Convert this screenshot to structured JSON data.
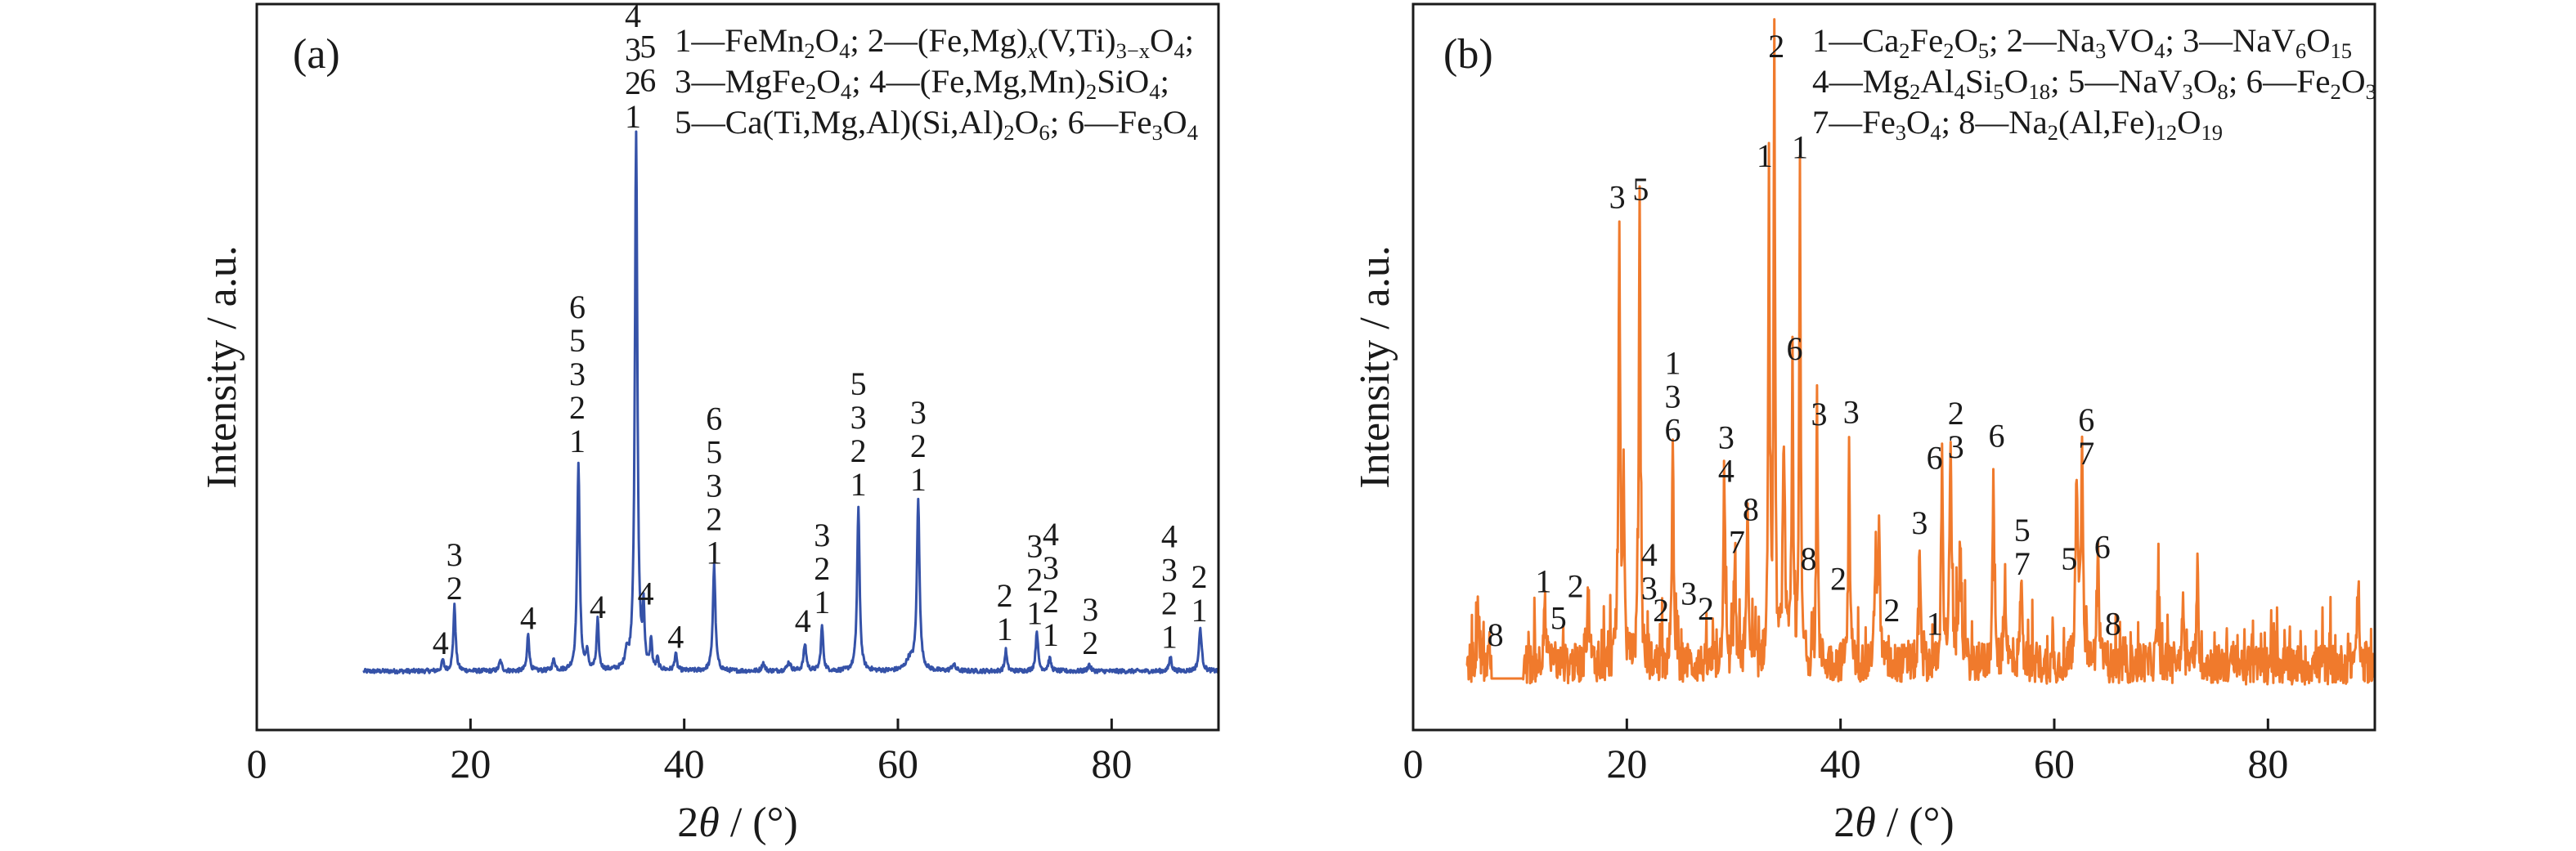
{
  "chart_data": [
    {
      "type": "line",
      "panel_label": "(a)",
      "xlabel_pre": "2",
      "xlabel_theta": "θ",
      "xlabel_post": " / (°)",
      "ylabel": "Intensity / a.u.",
      "xlim": [
        0,
        90
      ],
      "ylim": [
        0,
        100
      ],
      "xticks": [
        "0",
        "20",
        "40",
        "60",
        "80"
      ],
      "xtick_values": [
        0,
        20,
        40,
        60,
        80
      ],
      "color": "#3552a8",
      "x_start": 10,
      "x_end": 90,
      "baseline": 8.1,
      "noise": 0.6,
      "peaks": [
        [
          17.4,
          9.6,
          0.12
        ],
        [
          18.5,
          17.1,
          0.13
        ],
        [
          22.8,
          9.5,
          0.15
        ],
        [
          25.4,
          13.3,
          0.12
        ],
        [
          27.8,
          9.6,
          0.15
        ],
        [
          30.1,
          36.9,
          0.14
        ],
        [
          30.9,
          10.5,
          0.12
        ],
        [
          31.9,
          15.0,
          0.12
        ],
        [
          34.6,
          10.2,
          0.15
        ],
        [
          35.5,
          82.2,
          0.14
        ],
        [
          36.2,
          15.8,
          0.1
        ],
        [
          36.9,
          12.2,
          0.1
        ],
        [
          37.5,
          9.6,
          0.1
        ],
        [
          39.2,
          10.5,
          0.12
        ],
        [
          42.8,
          22.7,
          0.14
        ],
        [
          47.4,
          9.2,
          0.15
        ],
        [
          49.8,
          9.3,
          0.2
        ],
        [
          51.3,
          11.8,
          0.15
        ],
        [
          52.9,
          14.3,
          0.13
        ],
        [
          56.3,
          30.4,
          0.14
        ],
        [
          61.1,
          9.6,
          0.4
        ],
        [
          61.9,
          31.4,
          0.15
        ],
        [
          65.2,
          9.0,
          0.2
        ],
        [
          70.1,
          11.0,
          0.12
        ],
        [
          73.0,
          13.7,
          0.13
        ],
        [
          74.2,
          9.8,
          0.15
        ],
        [
          77.9,
          9.0,
          0.15
        ],
        [
          85.5,
          10.1,
          0.13
        ],
        [
          88.3,
          14.0,
          0.15
        ]
      ],
      "legend": [
        [
          "1—FeMn",
          "2",
          "O",
          "4",
          "; 2—(Fe,Mg)",
          "x",
          "(V,Ti)",
          "3−x",
          "O",
          "4",
          ";"
        ],
        [
          "3—MgFe",
          "2",
          "O",
          "4",
          "; 4—(Fe,Mg,Mn)",
          "2",
          "SiO",
          "4",
          ";"
        ],
        [
          "5—Ca(Ti,Mg,Al)(Si,Al)",
          "2",
          "O",
          "6",
          "; 6—Fe",
          "3",
          "O",
          "4"
        ]
      ],
      "annotations": [
        {
          "x": 17.2,
          "y": 10.5,
          "lines": [
            "4"
          ]
        },
        {
          "x": 18.5,
          "y": 18.0,
          "lines": [
            "3",
            "2"
          ]
        },
        {
          "x": 25.4,
          "y": 13.9,
          "lines": [
            "4"
          ]
        },
        {
          "x": 30.0,
          "y": 38.3,
          "lines": [
            "6",
            "5",
            "3",
            "2",
            "1"
          ]
        },
        {
          "x": 31.9,
          "y": 15.4,
          "lines": [
            "4"
          ]
        },
        {
          "x": 35.2,
          "y": 83.0,
          "lines": [
            "4",
            "3",
            "2",
            "1"
          ]
        },
        {
          "x": 36.6,
          "y": 88.0,
          "lines": [
            "5",
            "6"
          ]
        },
        {
          "x": 36.4,
          "y": 17.3,
          "lines": [
            "4"
          ]
        },
        {
          "x": 39.2,
          "y": 11.3,
          "lines": [
            "4"
          ]
        },
        {
          "x": 42.8,
          "y": 22.9,
          "lines": [
            "6",
            "5",
            "3",
            "2",
            "1"
          ]
        },
        {
          "x": 51.1,
          "y": 13.5,
          "lines": [
            "4"
          ]
        },
        {
          "x": 52.9,
          "y": 16.1,
          "lines": [
            "3",
            "2",
            "1"
          ]
        },
        {
          "x": 56.3,
          "y": 32.3,
          "lines": [
            "5",
            "3",
            "2",
            "1"
          ]
        },
        {
          "x": 61.9,
          "y": 33.0,
          "lines": [
            "3",
            "2",
            "1"
          ]
        },
        {
          "x": 70.0,
          "y": 12.4,
          "lines": [
            "2",
            "1"
          ]
        },
        {
          "x": 72.8,
          "y": 14.6,
          "lines": [
            "3",
            "2",
            "1"
          ]
        },
        {
          "x": 74.3,
          "y": 11.6,
          "lines": [
            "4",
            "3",
            "2",
            "1"
          ]
        },
        {
          "x": 78.0,
          "y": 10.5,
          "lines": [
            "3",
            "2"
          ]
        },
        {
          "x": 85.4,
          "y": 11.3,
          "lines": [
            "4",
            "3",
            "2",
            "1"
          ]
        },
        {
          "x": 88.2,
          "y": 15.0,
          "lines": [
            "2",
            "1"
          ]
        }
      ]
    },
    {
      "type": "line",
      "panel_label": "(b)",
      "xlabel_pre": "2",
      "xlabel_theta": "θ",
      "xlabel_post": " / (°)",
      "ylabel": "Intensity / a.u.",
      "xlim": [
        0,
        90
      ],
      "ylim": [
        0,
        100
      ],
      "xticks": [
        "0",
        "20",
        "40",
        "60",
        "80"
      ],
      "xtick_values": [
        0,
        20,
        40,
        60,
        80
      ],
      "color": "#f07a2c",
      "x_start": 5,
      "x_end": 90,
      "baseline": 9,
      "noise": 5.5,
      "flat_segments": [
        [
          7.3,
          10.3,
          7.1
        ]
      ],
      "peaks": [
        [
          6.1,
          17,
          0.12
        ],
        [
          12.3,
          18,
          0.12
        ],
        [
          16.4,
          18.8,
          0.12
        ],
        [
          19.3,
          69.6,
          0.09
        ],
        [
          19.7,
          36,
          0.08
        ],
        [
          21.2,
          72.7,
          0.09
        ],
        [
          24.3,
          38.9,
          0.09
        ],
        [
          29.1,
          33.3,
          0.1
        ],
        [
          30.1,
          24.4,
          0.08
        ],
        [
          31.3,
          29.6,
          0.1
        ],
        [
          33.3,
          76,
          0.08
        ],
        [
          33.8,
          91.2,
          0.08
        ],
        [
          34.7,
          39.4,
          0.12
        ],
        [
          35.5,
          49.5,
          0.08
        ],
        [
          36.2,
          77.1,
          0.08
        ],
        [
          37.8,
          40.8,
          0.08
        ],
        [
          40.8,
          41.8,
          0.08
        ],
        [
          43.3,
          24,
          0.12
        ],
        [
          43.6,
          25.1,
          0.1
        ],
        [
          47.4,
          26,
          0.08
        ],
        [
          49.5,
          36.4,
          0.1
        ],
        [
          50.3,
          36.9,
          0.12
        ],
        [
          51.2,
          24,
          0.15
        ],
        [
          54.3,
          37.8,
          0.08
        ],
        [
          55.4,
          21,
          0.1
        ],
        [
          56.9,
          21.6,
          0.1
        ],
        [
          62.1,
          35.6,
          0.12
        ],
        [
          62.6,
          36.2,
          0.12
        ],
        [
          64.1,
          24,
          0.1
        ],
        [
          69.7,
          19,
          0.1
        ],
        [
          72.0,
          18,
          0.1
        ],
        [
          73.4,
          22.1,
          0.1
        ],
        [
          88.4,
          18,
          0.12
        ]
      ],
      "legend": [
        [
          "1—Ca",
          "2",
          "Fe",
          "2",
          "O",
          "5",
          "; 2—Na",
          "3",
          "VO",
          "4",
          "; 3—NaV",
          "6",
          "O",
          "15"
        ],
        [
          "4—Mg",
          "2",
          "Al",
          "4",
          "Si",
          "5",
          "O",
          "18",
          "; 5—NaV",
          "3",
          "O",
          "8",
          "; 6—Fe",
          "2",
          "O",
          "3"
        ],
        [
          "7—Fe",
          "3",
          "O",
          "4",
          "; 8—Na",
          "2",
          "(Al,Fe)",
          "12",
          "O",
          "19"
        ]
      ],
      "annotations": [
        {
          "x": 7.7,
          "y": 11.6,
          "lines": [
            "8"
          ]
        },
        {
          "x": 12.2,
          "y": 19.0,
          "lines": [
            "1"
          ]
        },
        {
          "x": 13.6,
          "y": 13.9,
          "lines": [
            "5"
          ]
        },
        {
          "x": 15.2,
          "y": 18.3,
          "lines": [
            "2"
          ]
        },
        {
          "x": 19.1,
          "y": 71.9,
          "lines": [
            "3"
          ]
        },
        {
          "x": 21.3,
          "y": 73.0,
          "lines": [
            "5"
          ]
        },
        {
          "x": 24.3,
          "y": 39.8,
          "lines": [
            "1",
            "3",
            "6"
          ]
        },
        {
          "x": 22.1,
          "y": 18.0,
          "lines": [
            "4",
            "3"
          ]
        },
        {
          "x": 23.2,
          "y": 15.0,
          "lines": [
            "2"
          ]
        },
        {
          "x": 25.8,
          "y": 17.3,
          "lines": [
            "3"
          ]
        },
        {
          "x": 27.4,
          "y": 15.2,
          "lines": [
            "2"
          ]
        },
        {
          "x": 29.3,
          "y": 34.2,
          "lines": [
            "3",
            "4"
          ]
        },
        {
          "x": 30.3,
          "y": 24.4,
          "lines": [
            "7"
          ]
        },
        {
          "x": 31.6,
          "y": 28.9,
          "lines": [
            "8"
          ]
        },
        {
          "x": 32.9,
          "y": 77.6,
          "lines": [
            "1"
          ]
        },
        {
          "x": 34.0,
          "y": 92.7,
          "lines": [
            "2"
          ]
        },
        {
          "x": 36.2,
          "y": 78.8,
          "lines": [
            "1"
          ]
        },
        {
          "x": 35.7,
          "y": 51.0,
          "lines": [
            "6"
          ]
        },
        {
          "x": 37.0,
          "y": 22.1,
          "lines": [
            "8"
          ]
        },
        {
          "x": 38.0,
          "y": 42.0,
          "lines": [
            "3"
          ]
        },
        {
          "x": 41.0,
          "y": 42.3,
          "lines": [
            "3"
          ]
        },
        {
          "x": 39.8,
          "y": 19.3,
          "lines": [
            "2"
          ]
        },
        {
          "x": 44.8,
          "y": 15.0,
          "lines": [
            "2"
          ]
        },
        {
          "x": 48.8,
          "y": 13.1,
          "lines": [
            "1"
          ]
        },
        {
          "x": 47.4,
          "y": 27.0,
          "lines": [
            "3"
          ]
        },
        {
          "x": 48.8,
          "y": 36.0,
          "lines": [
            "6"
          ]
        },
        {
          "x": 50.8,
          "y": 37.5,
          "lines": [
            "2",
            "3"
          ]
        },
        {
          "x": 54.6,
          "y": 39.0,
          "lines": [
            "6"
          ]
        },
        {
          "x": 57.0,
          "y": 21.4,
          "lines": [
            "5",
            "7"
          ]
        },
        {
          "x": 61.4,
          "y": 22.1,
          "lines": [
            "5"
          ]
        },
        {
          "x": 63.0,
          "y": 36.6,
          "lines": [
            "6",
            "7"
          ]
        },
        {
          "x": 64.5,
          "y": 23.7,
          "lines": [
            "6"
          ]
        },
        {
          "x": 65.5,
          "y": 13.1,
          "lines": [
            "8"
          ]
        }
      ]
    }
  ]
}
